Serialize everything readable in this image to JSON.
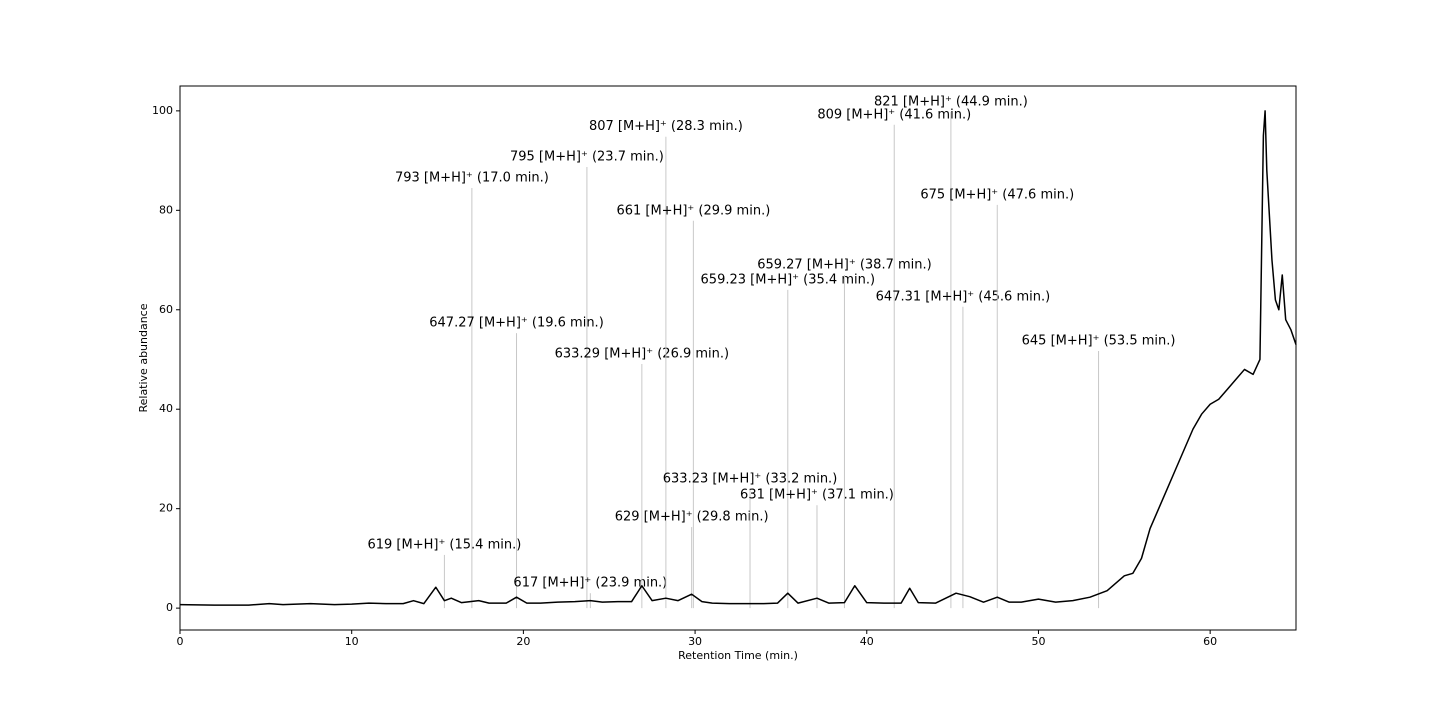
{
  "chart_data": {
    "type": "line",
    "xlabel": "Retention Time (min.)",
    "ylabel": "Relative abundance",
    "xlim": [
      0,
      65
    ],
    "ylim": [
      -4.4,
      105
    ],
    "xticks": [
      0,
      10,
      20,
      30,
      40,
      50,
      60
    ],
    "yticks": [
      0,
      20,
      40,
      60,
      80,
      100
    ],
    "series": [
      {
        "color": "#000000",
        "x": [
          0,
          2,
          4,
          5.2,
          6,
          7.6,
          9,
          10,
          11,
          12,
          13,
          13.6,
          14.2,
          14.9,
          15.4,
          15.8,
          16.4,
          17.4,
          18,
          19,
          19.6,
          20.2,
          21,
          22,
          23,
          23.9,
          24.6,
          25.5,
          26.3,
          26.9,
          27.5,
          28.3,
          29,
          29.8,
          30.4,
          31,
          32,
          33,
          34,
          34.8,
          35.4,
          36,
          37.1,
          37.8,
          38.7,
          39.3,
          40,
          41,
          42,
          42.5,
          43,
          44,
          45.2,
          46,
          46.8,
          47.6,
          48.3,
          49,
          50,
          51,
          52,
          53,
          54,
          55,
          55.5,
          56,
          56.5,
          57,
          57.5,
          58,
          58.5,
          59,
          59.5,
          60,
          60.5,
          61,
          61.5,
          62,
          62.5,
          62.9,
          63.1,
          63.2,
          63.3,
          63.6,
          63.8,
          64,
          64.2,
          64.4,
          64.7,
          65
        ],
        "values": [
          0.7,
          0.6,
          0.6,
          0.9,
          0.7,
          0.9,
          0.7,
          0.8,
          1.0,
          0.9,
          0.9,
          1.5,
          0.9,
          4.2,
          1.5,
          2.0,
          1.1,
          1.5,
          1.0,
          1.0,
          2.2,
          1.0,
          1.0,
          1.2,
          1.3,
          1.5,
          1.2,
          1.3,
          1.3,
          4.5,
          1.5,
          2.0,
          1.5,
          2.8,
          1.3,
          1.0,
          0.9,
          0.9,
          0.9,
          1.0,
          3.0,
          1.0,
          2.0,
          1.0,
          1.1,
          4.5,
          1.1,
          1.0,
          1.0,
          4.0,
          1.1,
          1.0,
          3.0,
          2.3,
          1.2,
          2.2,
          1.2,
          1.2,
          1.8,
          1.2,
          1.5,
          2.2,
          3.5,
          6.5,
          7,
          10,
          16,
          20,
          24,
          28,
          32,
          36,
          39,
          41,
          42,
          44,
          46,
          48,
          47,
          50,
          95,
          100,
          88,
          70,
          62,
          60,
          67,
          58,
          56,
          53
        ]
      }
    ],
    "annotations": [
      {
        "text": "619 [M+H]⁺ (15.4 min.)",
        "x": 15.4,
        "y": 10.7
      },
      {
        "text": "793 [M+H]⁺ (17.0 min.)",
        "x": 17.0,
        "y": 84.5
      },
      {
        "text": "647.27 [M+H]⁺ (19.6 min.)",
        "x": 19.6,
        "y": 55.3
      },
      {
        "text": "795 [M+H]⁺ (23.7 min.)",
        "x": 23.7,
        "y": 88.7
      },
      {
        "text": "617 [M+H]⁺ (23.9 min.)",
        "x": 23.9,
        "y": 3
      },
      {
        "text": "633.29 [M+H]⁺ (26.9 min.)",
        "x": 26.9,
        "y": 49.1
      },
      {
        "text": "807 [M+H]⁺ (28.3 min.)",
        "x": 28.3,
        "y": 94.8
      },
      {
        "text": "629 [M+H]⁺ (29.8 min.)",
        "x": 29.8,
        "y": 16.3
      },
      {
        "text": "661 [M+H]⁺ (29.9 min.)",
        "x": 29.9,
        "y": 77.9
      },
      {
        "text": "633.23 [M+H]⁺ (33.2 min.)",
        "x": 33.2,
        "y": 24
      },
      {
        "text": "659.23 [M+H]⁺ (35.4 min.)",
        "x": 35.4,
        "y": 64
      },
      {
        "text": "631 [M+H]⁺ (37.1 min.)",
        "x": 37.1,
        "y": 20.7
      },
      {
        "text": "659.27 [M+H]⁺ (38.7 min.)",
        "x": 38.7,
        "y": 67
      },
      {
        "text": "809 [M+H]⁺ (41.6 min.)",
        "x": 41.6,
        "y": 97.2
      },
      {
        "text": "821 [M+H]⁺ (44.9 min.)",
        "x": 44.9,
        "y": 99.8
      },
      {
        "text": "647.31 [M+H]⁺ (45.6 min.)",
        "x": 45.6,
        "y": 60.6
      },
      {
        "text": "675 [M+H]⁺ (47.6 min.)",
        "x": 47.6,
        "y": 81.1
      },
      {
        "text": "645 [M+H]⁺ (53.5 min.)",
        "x": 53.5,
        "y": 51.7
      }
    ]
  }
}
